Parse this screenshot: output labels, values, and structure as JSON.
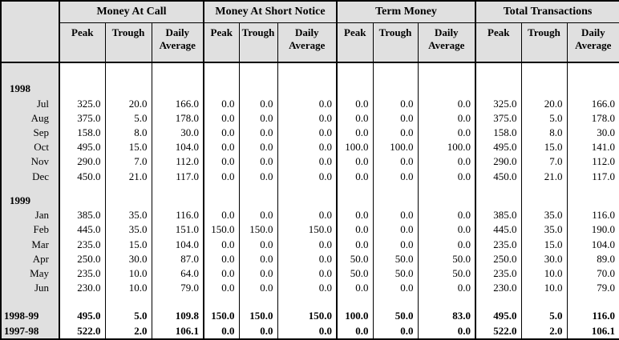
{
  "colors": {
    "header_bg": "#e0e0e0",
    "label_column_bg": "#e0e0e0",
    "border": "#000000",
    "cell_bg": "#ffffff"
  },
  "table": {
    "corner_label": "",
    "groups": [
      {
        "label": "Money At Call"
      },
      {
        "label": "Money At Short Notice"
      },
      {
        "label": "Term Money"
      },
      {
        "label": "Total Transactions"
      }
    ],
    "subheaders": [
      "Peak",
      "Trough",
      "Daily Average"
    ],
    "sections": [
      {
        "year": "1998",
        "rows": [
          {
            "label": "Jul",
            "values": [
              "325.0",
              "20.0",
              "166.0",
              "0.0",
              "0.0",
              "0.0",
              "0.0",
              "0.0",
              "0.0",
              "325.0",
              "20.0",
              "166.0"
            ]
          },
          {
            "label": "Aug",
            "values": [
              "375.0",
              "5.0",
              "178.0",
              "0.0",
              "0.0",
              "0.0",
              "0.0",
              "0.0",
              "0.0",
              "375.0",
              "5.0",
              "178.0"
            ]
          },
          {
            "label": "Sep",
            "values": [
              "158.0",
              "8.0",
              "30.0",
              "0.0",
              "0.0",
              "0.0",
              "0.0",
              "0.0",
              "0.0",
              "158.0",
              "8.0",
              "30.0"
            ]
          },
          {
            "label": "Oct",
            "values": [
              "495.0",
              "15.0",
              "104.0",
              "0.0",
              "0.0",
              "0.0",
              "100.0",
              "100.0",
              "100.0",
              "495.0",
              "15.0",
              "141.0"
            ]
          },
          {
            "label": "Nov",
            "values": [
              "290.0",
              "7.0",
              "112.0",
              "0.0",
              "0.0",
              "0.0",
              "0.0",
              "0.0",
              "0.0",
              "290.0",
              "7.0",
              "112.0"
            ]
          },
          {
            "label": "Dec",
            "values": [
              "450.0",
              "21.0",
              "117.0",
              "0.0",
              "0.0",
              "0.0",
              "0.0",
              "0.0",
              "0.0",
              "450.0",
              "21.0",
              "117.0"
            ]
          }
        ]
      },
      {
        "year": "1999",
        "rows": [
          {
            "label": "Jan",
            "values": [
              "385.0",
              "35.0",
              "116.0",
              "0.0",
              "0.0",
              "0.0",
              "0.0",
              "0.0",
              "0.0",
              "385.0",
              "35.0",
              "116.0"
            ]
          },
          {
            "label": "Feb",
            "values": [
              "445.0",
              "35.0",
              "151.0",
              "150.0",
              "150.0",
              "150.0",
              "0.0",
              "0.0",
              "0.0",
              "445.0",
              "35.0",
              "190.0"
            ]
          },
          {
            "label": "Mar",
            "values": [
              "235.0",
              "15.0",
              "104.0",
              "0.0",
              "0.0",
              "0.0",
              "0.0",
              "0.0",
              "0.0",
              "235.0",
              "15.0",
              "104.0"
            ]
          },
          {
            "label": "Apr",
            "values": [
              "250.0",
              "30.0",
              "87.0",
              "0.0",
              "0.0",
              "0.0",
              "50.0",
              "50.0",
              "50.0",
              "250.0",
              "30.0",
              "89.0"
            ]
          },
          {
            "label": "May",
            "values": [
              "235.0",
              "10.0",
              "64.0",
              "0.0",
              "0.0",
              "0.0",
              "50.0",
              "50.0",
              "50.0",
              "235.0",
              "10.0",
              "70.0"
            ]
          },
          {
            "label": "Jun",
            "values": [
              "230.0",
              "10.0",
              "79.0",
              "0.0",
              "0.0",
              "0.0",
              "0.0",
              "0.0",
              "0.0",
              "230.0",
              "10.0",
              "79.0"
            ]
          }
        ]
      }
    ],
    "summary_rows": [
      {
        "label": "1998-99",
        "values": [
          "495.0",
          "5.0",
          "109.8",
          "150.0",
          "150.0",
          "150.0",
          "100.0",
          "50.0",
          "83.0",
          "495.0",
          "5.0",
          "116.0"
        ]
      },
      {
        "label": "1997-98",
        "values": [
          "522.0",
          "2.0",
          "106.1",
          "0.0",
          "0.0",
          "0.0",
          "0.0",
          "0.0",
          "0.0",
          "522.0",
          "2.0",
          "106.1"
        ]
      }
    ]
  }
}
